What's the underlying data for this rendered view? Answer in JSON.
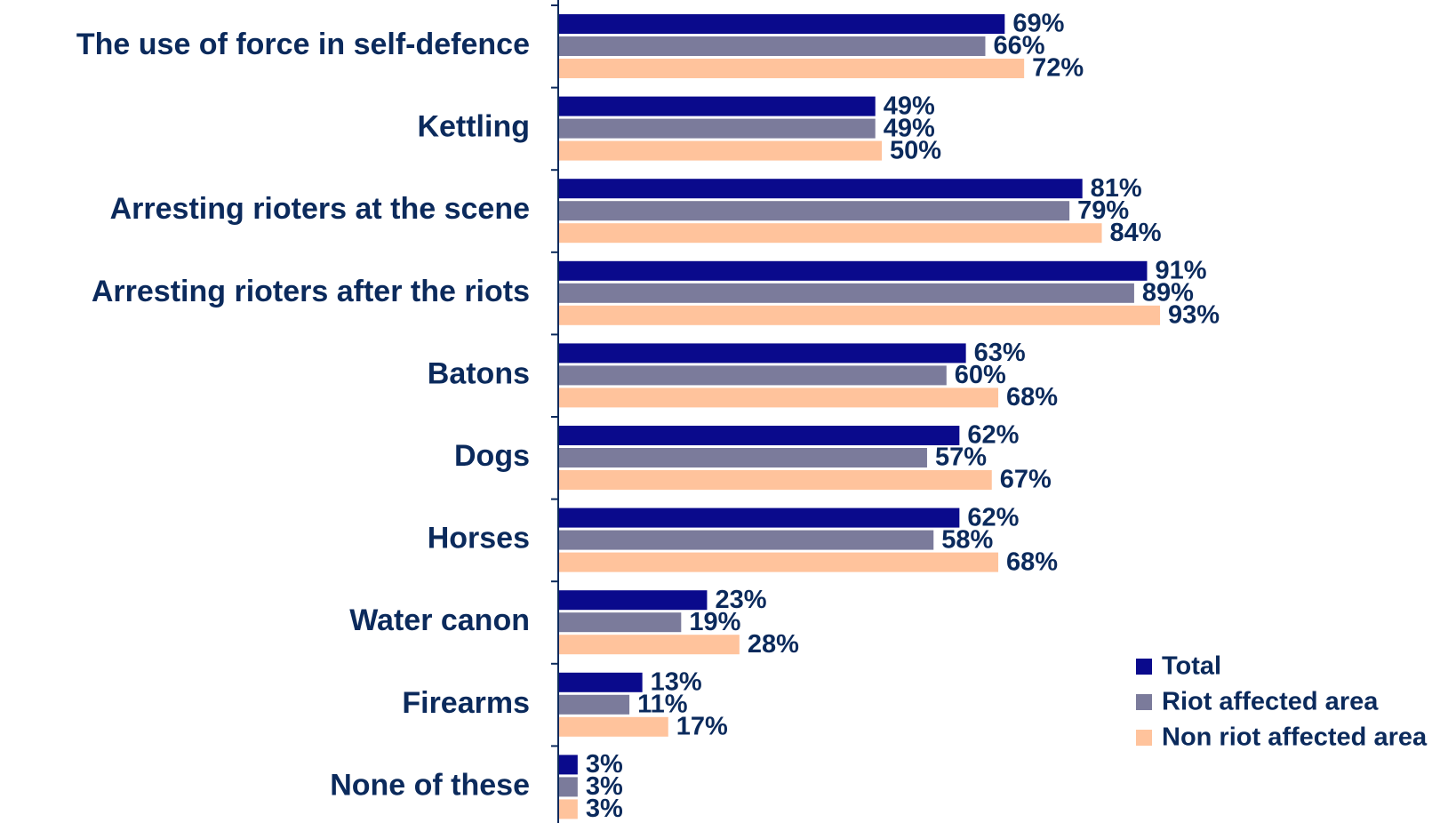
{
  "chart_data": {
    "type": "bar",
    "orientation": "horizontal",
    "categories": [
      "The use of force in self-defence",
      "Kettling",
      "Arresting rioters at the scene",
      "Arresting rioters after the riots",
      "Batons",
      "Dogs",
      "Horses",
      "Water canon",
      "Firearms",
      "None of these"
    ],
    "series": [
      {
        "name": "Total",
        "color": "#0a0a8c",
        "values": [
          69,
          49,
          81,
          91,
          63,
          62,
          62,
          23,
          13,
          3
        ]
      },
      {
        "name": "Riot affected area",
        "color": "#7b7b9b",
        "values": [
          66,
          49,
          79,
          89,
          60,
          57,
          58,
          19,
          11,
          3
        ]
      },
      {
        "name": "Non riot affected area",
        "color": "#ffc39c",
        "values": [
          72,
          50,
          84,
          93,
          68,
          67,
          68,
          28,
          17,
          3
        ]
      }
    ],
    "value_suffix": "%",
    "xlim": [
      0,
      100
    ],
    "grid": false,
    "legend_position": "bottom-right",
    "title": "",
    "xlabel": "",
    "ylabel": ""
  }
}
